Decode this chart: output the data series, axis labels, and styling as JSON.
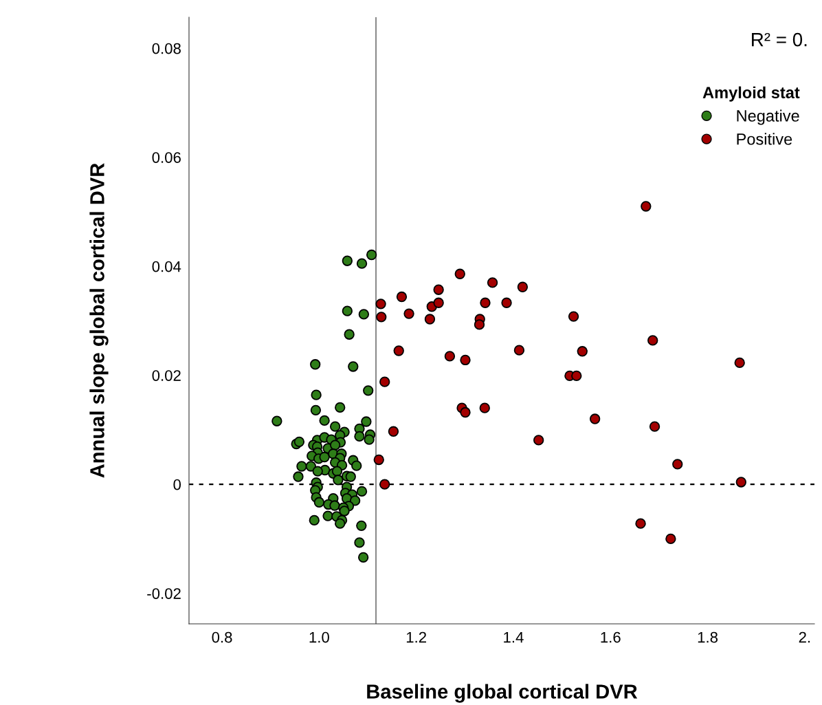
{
  "chart_data": {
    "type": "scatter",
    "xlabel": "Baseline global cortical DVR",
    "ylabel": "Annual slope global cortical DVR",
    "annotations": [
      "R² = 0."
    ],
    "legend_title": "Amyloid stat",
    "legend": "top right",
    "marker": "circle",
    "grid": false,
    "xlim": [
      0.732,
      2.02
    ],
    "ylim": [
      -0.0256,
      0.0857
    ],
    "xticks": [
      0.8,
      {
        "value": 1.0,
        "label": "1.0"
      },
      1.2,
      1.4,
      1.6,
      1.8,
      {
        "value": 2.0,
        "label": "2."
      }
    ],
    "yticks": [
      -0.02,
      0,
      0.02,
      0.04,
      0.06,
      0.08
    ],
    "ref_lines": [
      {
        "axis": "y",
        "value": 0,
        "label": null,
        "color": "#000000",
        "line_style": "dashed"
      },
      {
        "axis": "x",
        "value": 1.117,
        "label": null,
        "color": "#555555",
        "line_style": "solid"
      }
    ],
    "series": [
      {
        "name": "Negative",
        "color": "#2e7d18",
        "x": [
          1.058,
          1.088,
          1.108,
          1.058,
          1.092,
          1.062,
          0.992,
          1.07,
          1.101,
          0.994,
          0.993,
          1.043,
          0.913,
          1.011,
          1.097,
          1.033,
          1.083,
          1.052,
          1.083,
          1.105,
          1.103,
          0.953,
          0.959,
          0.996,
          1.011,
          1.025,
          1.043,
          1.044,
          0.988,
          0.996,
          1.018,
          1.033,
          0.997,
          0.985,
          0.999,
          1.011,
          1.029,
          1.046,
          1.043,
          1.07,
          1.033,
          1.047,
          1.077,
          0.964,
          0.983,
          1.012,
          0.997,
          1.029,
          1.037,
          0.957,
          1.057,
          1.065,
          1.039,
          0.994,
          0.997,
          0.992,
          1.057,
          1.088,
          1.054,
          1.068,
          0.994,
          1.0,
          1.029,
          1.057,
          1.074,
          1.019,
          1.032,
          1.061,
          1.05,
          1.052,
          1.018,
          1.036,
          0.99,
          1.047,
          1.043,
          1.087,
          1.083,
          1.091
        ],
        "values": [
          0.041,
          0.0405,
          0.0421,
          0.0318,
          0.0312,
          0.0275,
          0.022,
          0.0216,
          0.0172,
          0.0164,
          0.0136,
          0.0141,
          0.0116,
          0.0117,
          0.0115,
          0.0106,
          0.0102,
          0.0096,
          0.0088,
          0.0091,
          0.0082,
          0.0074,
          0.0078,
          0.0081,
          0.0086,
          0.0082,
          0.009,
          0.0077,
          0.0072,
          0.0069,
          0.0066,
          0.0072,
          0.0058,
          0.0052,
          0.0047,
          0.005,
          0.0056,
          0.0056,
          0.0048,
          0.0044,
          0.004,
          0.0035,
          0.0034,
          0.0033,
          0.0033,
          0.0026,
          0.0024,
          0.002,
          0.0024,
          0.0014,
          0.0015,
          0.0014,
          0.0008,
          0.0003,
          -0.0005,
          -0.0011,
          -0.0005,
          -0.0013,
          -0.0016,
          -0.0019,
          -0.0024,
          -0.0033,
          -0.0026,
          -0.0026,
          -0.003,
          -0.0037,
          -0.0039,
          -0.004,
          -0.0043,
          -0.0049,
          -0.0058,
          -0.0059,
          -0.0066,
          -0.0066,
          -0.0072,
          -0.0076,
          -0.0107,
          -0.0134
        ]
      },
      {
        "name": "Positive",
        "color": "#a30000",
        "x": [
          1.673,
          1.29,
          1.357,
          1.17,
          1.246,
          1.127,
          1.232,
          1.246,
          1.342,
          1.386,
          1.419,
          1.128,
          1.185,
          1.228,
          1.331,
          1.33,
          1.524,
          1.687,
          1.164,
          1.269,
          1.301,
          1.412,
          1.542,
          1.516,
          1.53,
          1.866,
          1.135,
          1.294,
          1.301,
          1.341,
          1.568,
          1.153,
          1.452,
          1.691,
          1.123,
          1.738,
          1.135,
          1.869,
          1.662,
          1.724
        ],
        "values": [
          0.051,
          0.0386,
          0.037,
          0.0344,
          0.0357,
          0.0331,
          0.0326,
          0.0333,
          0.0333,
          0.0333,
          0.0362,
          0.0307,
          0.0313,
          0.0303,
          0.0303,
          0.0293,
          0.0308,
          0.0264,
          0.0245,
          0.0235,
          0.0228,
          0.0246,
          0.0244,
          0.0199,
          0.0199,
          0.0223,
          0.0188,
          0.014,
          0.0132,
          0.014,
          0.012,
          0.0097,
          0.0081,
          0.0106,
          0.0045,
          0.0037,
          0.0,
          0.0004,
          -0.0072,
          -0.01
        ]
      }
    ]
  }
}
